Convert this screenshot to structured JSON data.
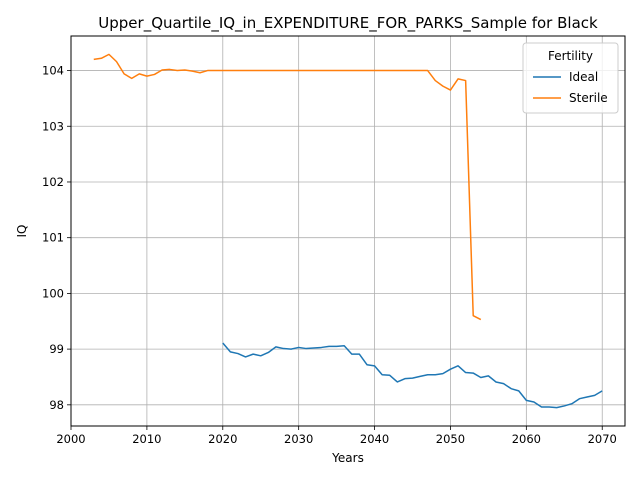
{
  "chart_data": {
    "type": "line",
    "title": "Upper_Quartile_IQ_in_EXPENDITURE_FOR_PARKS_Sample for Black",
    "xlabel": "Years",
    "ylabel": "IQ",
    "xlim": [
      2000,
      2073
    ],
    "ylim": [
      97.62,
      104.62
    ],
    "xticks": [
      2000,
      2010,
      2020,
      2030,
      2040,
      2050,
      2060,
      2070
    ],
    "yticks": [
      98,
      99,
      100,
      101,
      102,
      103,
      104
    ],
    "grid": true,
    "legend": {
      "title": "Fertility",
      "position": "top-right"
    },
    "series": [
      {
        "name": "Ideal",
        "color": "#1f77b4",
        "x": [
          2020,
          2021,
          2022,
          2023,
          2024,
          2025,
          2026,
          2027,
          2028,
          2029,
          2030,
          2031,
          2032,
          2033,
          2034,
          2035,
          2036,
          2037,
          2038,
          2039,
          2040,
          2041,
          2042,
          2043,
          2044,
          2045,
          2046,
          2047,
          2048,
          2049,
          2050,
          2051,
          2052,
          2053,
          2054,
          2055,
          2056,
          2057,
          2058,
          2059,
          2060,
          2061,
          2062,
          2063,
          2064,
          2065,
          2066,
          2067,
          2068,
          2069,
          2070
        ],
        "y": [
          99.11,
          98.95,
          98.92,
          98.86,
          98.91,
          98.88,
          98.94,
          99.04,
          99.01,
          99.0,
          99.03,
          99.01,
          99.02,
          99.03,
          99.05,
          99.05,
          99.06,
          98.91,
          98.91,
          98.72,
          98.7,
          98.54,
          98.53,
          98.41,
          98.47,
          98.48,
          98.51,
          98.54,
          98.54,
          98.56,
          98.64,
          98.7,
          98.58,
          98.57,
          98.49,
          98.52,
          98.41,
          98.38,
          98.29,
          98.25,
          98.08,
          98.05,
          97.96,
          97.96,
          97.95,
          97.98,
          98.02,
          98.11,
          98.14,
          98.17,
          98.25
        ]
      },
      {
        "name": "Sterile",
        "color": "#ff7f0e",
        "x": [
          2003,
          2004,
          2005,
          2006,
          2007,
          2008,
          2009,
          2010,
          2011,
          2012,
          2013,
          2014,
          2015,
          2016,
          2017,
          2018,
          2019,
          2020,
          2021,
          2022,
          2023,
          2024,
          2025,
          2026,
          2027,
          2028,
          2029,
          2030,
          2031,
          2032,
          2033,
          2034,
          2035,
          2036,
          2037,
          2038,
          2039,
          2040,
          2041,
          2042,
          2043,
          2044,
          2045,
          2046,
          2047,
          2048,
          2049,
          2050,
          2051,
          2052,
          2053,
          2054
        ],
        "y": [
          104.2,
          104.22,
          104.29,
          104.16,
          103.94,
          103.86,
          103.94,
          103.9,
          103.93,
          104.01,
          104.02,
          104.0,
          104.01,
          103.99,
          103.96,
          104.0,
          104.0,
          104.0,
          104.0,
          104.0,
          104.0,
          104.0,
          104.0,
          104.0,
          104.0,
          104.0,
          104.0,
          104.0,
          104.0,
          104.0,
          104.0,
          104.0,
          104.0,
          104.0,
          104.0,
          104.0,
          104.0,
          104.0,
          104.0,
          104.0,
          104.0,
          104.0,
          104.0,
          104.0,
          104.0,
          103.82,
          103.72,
          103.65,
          103.85,
          103.82,
          99.6,
          99.53
        ]
      }
    ]
  }
}
